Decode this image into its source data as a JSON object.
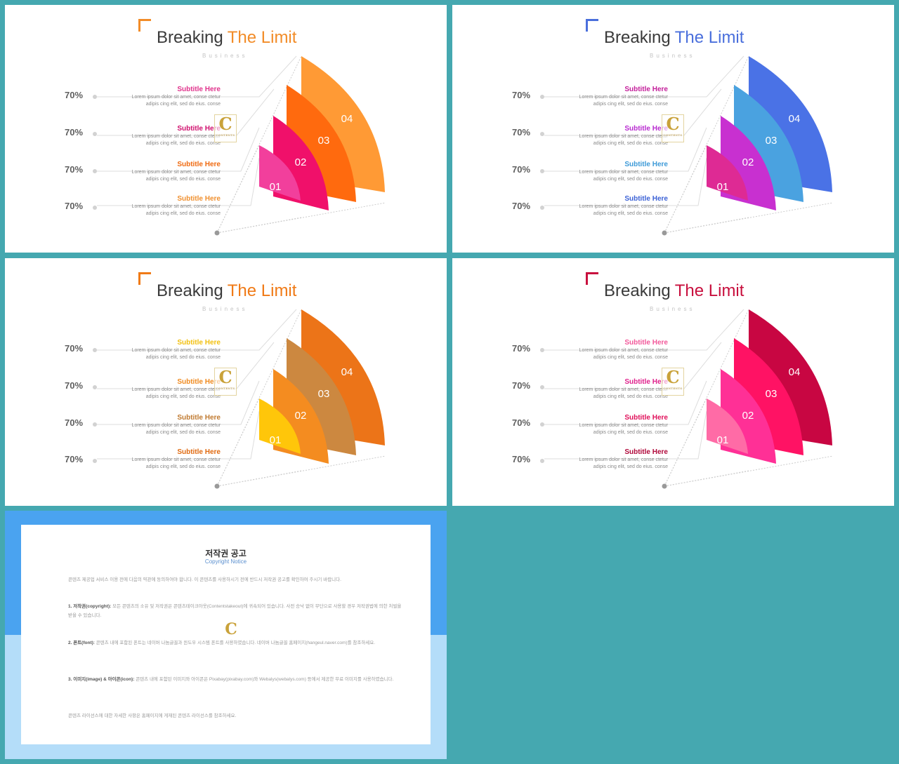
{
  "watermark": {
    "letter": "C",
    "text": "CONTENTS"
  },
  "slides": [
    {
      "title_main": "Breaking",
      "title_accent": "The Limit",
      "subtitle": "Business",
      "accent": "#f28c28",
      "percents": [
        "70%",
        "70%",
        "70%",
        "70%"
      ],
      "items": [
        {
          "title": "Subtitle Here",
          "color": "#e0338c",
          "line1": "Lorem ipsum dolor sit amet, conse ctetur",
          "line2": "adipis cing elit, sed do eius. conse"
        },
        {
          "title": "Subtitle Here",
          "color": "#d0106e",
          "line1": "Lorem ipsum dolor sit amet, conse ctetur",
          "line2": "adipis cing elit, sed do eius. conse"
        },
        {
          "title": "Subtitle Here",
          "color": "#f06a10",
          "line1": "Lorem ipsum dolor sit amet, conse ctetur",
          "line2": "adipis cing elit, sed do eius. conse"
        },
        {
          "title": "Subtitle Here",
          "color": "#f09030",
          "line1": "Lorem ipsum dolor sit amet, conse ctetur",
          "line2": "adipis cing elit, sed do eius. conse"
        }
      ],
      "segments": [
        {
          "label": "01",
          "color": "#f23f9c"
        },
        {
          "label": "02",
          "color": "#f0106a"
        },
        {
          "label": "03",
          "color": "#ff6a0e"
        },
        {
          "label": "04",
          "color": "#ff9a35"
        }
      ]
    },
    {
      "title_main": "Breaking",
      "title_accent": "The Limit",
      "subtitle": "Business",
      "accent": "#4a6fdc",
      "percents": [
        "70%",
        "70%",
        "70%",
        "70%"
      ],
      "items": [
        {
          "title": "Subtitle Here",
          "color": "#c41e9a",
          "line1": "Lorem ipsum dolor sit amet, conse ctetur",
          "line2": "adipis cing elit, sed do eius. conse"
        },
        {
          "title": "Subtitle Here",
          "color": "#b82ad0",
          "line1": "Lorem ipsum dolor sit amet, conse ctetur",
          "line2": "adipis cing elit, sed do eius. conse"
        },
        {
          "title": "Subtitle Here",
          "color": "#3d9ad8",
          "line1": "Lorem ipsum dolor sit amet, conse ctetur",
          "line2": "adipis cing elit, sed do eius. conse"
        },
        {
          "title": "Subtitle Here",
          "color": "#3c62d6",
          "line1": "Lorem ipsum dolor sit amet, conse ctetur",
          "line2": "adipis cing elit, sed do eius. conse"
        }
      ],
      "segments": [
        {
          "label": "01",
          "color": "#de2a94"
        },
        {
          "label": "02",
          "color": "#c830d0"
        },
        {
          "label": "03",
          "color": "#4aa2e0"
        },
        {
          "label": "04",
          "color": "#4a72e6"
        }
      ]
    },
    {
      "title_main": "Breaking",
      "title_accent": "The Limit",
      "subtitle": "Business",
      "accent": "#f07a16",
      "percents": [
        "70%",
        "70%",
        "70%",
        "70%"
      ],
      "items": [
        {
          "title": "Subtitle Here",
          "color": "#f2c010",
          "line1": "Lorem ipsum dolor sit amet, conse ctetur",
          "line2": "adipis cing elit, sed do eius. conse"
        },
        {
          "title": "Subtitle Here",
          "color": "#f08a1e",
          "line1": "Lorem ipsum dolor sit amet, conse ctetur",
          "line2": "adipis cing elit, sed do eius. conse"
        },
        {
          "title": "Subtitle Here",
          "color": "#c07a30",
          "line1": "Lorem ipsum dolor sit amet, conse ctetur",
          "line2": "adipis cing elit, sed do eius. conse"
        },
        {
          "title": "Subtitle Here",
          "color": "#e06a10",
          "line1": "Lorem ipsum dolor sit amet, conse ctetur",
          "line2": "adipis cing elit, sed do eius. conse"
        }
      ],
      "segments": [
        {
          "label": "01",
          "color": "#ffc60a"
        },
        {
          "label": "02",
          "color": "#f48c20"
        },
        {
          "label": "03",
          "color": "#cc8840"
        },
        {
          "label": "04",
          "color": "#ec7418"
        }
      ]
    },
    {
      "title_main": "Breaking",
      "title_accent": "The Limit",
      "subtitle": "Business",
      "accent": "#c8103e",
      "percents": [
        "70%",
        "70%",
        "70%",
        "70%"
      ],
      "items": [
        {
          "title": "Subtitle Here",
          "color": "#f2589a",
          "line1": "Lorem ipsum dolor sit amet, conse ctetur",
          "line2": "adipis cing elit, sed do eius. conse"
        },
        {
          "title": "Subtitle Here",
          "color": "#e0208c",
          "line1": "Lorem ipsum dolor sit amet, conse ctetur",
          "line2": "adipis cing elit, sed do eius. conse"
        },
        {
          "title": "Subtitle Here",
          "color": "#e0105a",
          "line1": "Lorem ipsum dolor sit amet, conse ctetur",
          "line2": "adipis cing elit, sed do eius. conse"
        },
        {
          "title": "Subtitle Here",
          "color": "#b0083a",
          "line1": "Lorem ipsum dolor sit amet, conse ctetur",
          "line2": "adipis cing elit, sed do eius. conse"
        }
      ],
      "segments": [
        {
          "label": "01",
          "color": "#ff6ba6"
        },
        {
          "label": "02",
          "color": "#ff3096"
        },
        {
          "label": "03",
          "color": "#ff1264"
        },
        {
          "label": "04",
          "color": "#c80642"
        }
      ]
    }
  ],
  "copyright": {
    "title": "저작권 공고",
    "subtitle": "Copyright Notice",
    "intro": "콘텐츠 제공업 서비스 이용 전에 다음의 약관에 동의하여야 합니다. 이 콘텐츠를 사용하시기 전에 반드시 저작권 공고를 확인하여 주시기 바랍니다.",
    "p1_head": "1. 저작권(copyright):",
    "p1": "모든 콘텐츠의 소유 및 저작권은 콘텐츠테이크아웃(Contentstakeout)에 귀속되어 있습니다. 사전 승낙 없이 무단으로 사용할 경우 저작권법에 의한 처벌을 받을 수 있습니다.",
    "p2_head": "2. 폰트(font):",
    "p2": "콘텐츠 내에 포함된 폰트는 네이버 나눔글꼴과 윈도우 시스템 폰트를 사용하였습니다. 네이버 나눔글꼴 홈페이지(hangeul.naver.com)를 참조하세요.",
    "p3_head": "3. 이미지(image) & 아이콘(icon):",
    "p3": "콘텐츠 내에 포함된 이미지와 아이콘은 Pixabay(pixabay.com)와 Webalys(webalys.com) 등에서 제공한 무료 이미지를 사용하였습니다.",
    "outro": "콘텐츠 라이선스에 대한 자세한 사항은 홈페이지에 게재된 콘텐츠 라이선스를 참조하세요."
  }
}
